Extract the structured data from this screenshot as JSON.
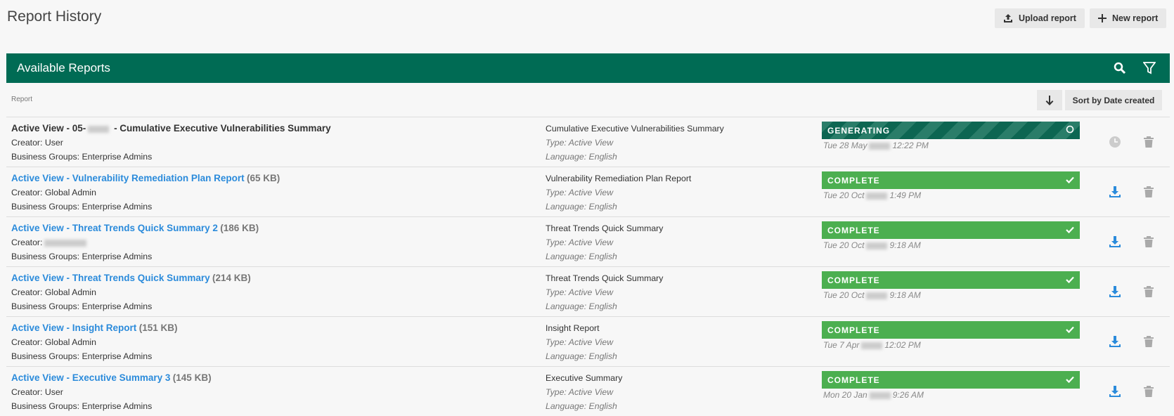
{
  "header": {
    "title": "Report History",
    "buttons": [
      "Upload report",
      "New report"
    ]
  },
  "panel": {
    "title": "Available Reports"
  },
  "table": {
    "column": "Report",
    "sort": "Sort by Date created",
    "rows": [
      {
        "name_prefix": "Active View - 05-",
        "name_suffix": " - Cumulative Executive Vulnerabilities Summary",
        "creator": "Creator: User",
        "business_groups": "Business Groups: Enterprise Admins",
        "template": "Cumulative Executive Vulnerabilities Summary",
        "type": "Type: Active View",
        "language": "Language: English",
        "status": "GENERATING",
        "date_day": "Tue 28 May",
        "date_time": "12:22 PM"
      },
      {
        "name": "Active View - Vulnerability Remediation Plan Report",
        "size": "(65 KB)",
        "creator": "Creator: Global Admin",
        "business_groups": "Business Groups: Enterprise Admins",
        "template": "Vulnerability Remediation Plan Report",
        "type": "Type: Active View",
        "language": "Language: English",
        "status": "COMPLETE",
        "date_day": "Tue 20 Oct",
        "date_time": "1:49 PM"
      },
      {
        "name": "Active View - Threat Trends Quick Summary 2",
        "size": "(186 KB)",
        "creator": "Creator:",
        "business_groups": "Business Groups: Enterprise Admins",
        "template": "Threat Trends Quick Summary",
        "type": "Type: Active View",
        "language": "Language: English",
        "status": "COMPLETE",
        "date_day": "Tue 20 Oct",
        "date_time": "9:18 AM"
      },
      {
        "name": "Active View - Threat Trends Quick Summary",
        "size": "(214 KB)",
        "creator": "Creator: Global Admin",
        "business_groups": "Business Groups: Enterprise Admins",
        "template": "Threat Trends Quick Summary",
        "type": "Type: Active View",
        "language": "Language: English",
        "status": "COMPLETE",
        "date_day": "Tue 20 Oct",
        "date_time": "9:18 AM"
      },
      {
        "name": "Active View - Insight Report",
        "size": "(151 KB)",
        "creator": "Creator: Global Admin",
        "business_groups": "Business Groups: Enterprise Admins",
        "template": "Insight Report",
        "type": "Type: Active View",
        "language": "Language: English",
        "status": "COMPLETE",
        "date_day": "Tue 7 Apr",
        "date_time": "12:02 PM"
      },
      {
        "name": "Active View - Executive Summary 3",
        "size": "(145 KB)",
        "creator": "Creator: User",
        "business_groups": "Business Groups: Enterprise Admins",
        "template": "Executive Summary",
        "type": "Type: Active View",
        "language": "Language: English",
        "status": "COMPLETE",
        "date_day": "Mon 20 Jan",
        "date_time": "9:26 AM"
      }
    ]
  }
}
